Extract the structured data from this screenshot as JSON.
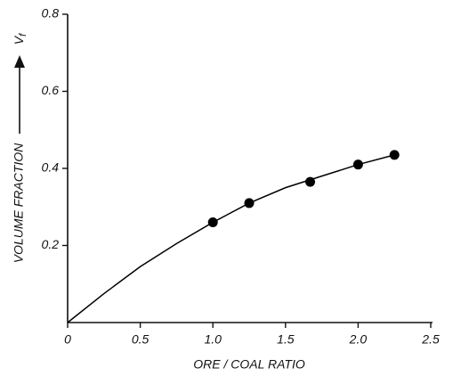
{
  "chart_data": {
    "type": "scatter",
    "xlabel": "ORE / COAL RATIO",
    "ylabel": "VOLUME FRACTION",
    "ysymbol": "V",
    "ysymbol_sub": "f",
    "x": [
      1.0,
      1.25,
      1.67,
      2.0,
      2.25
    ],
    "values": [
      0.26,
      0.31,
      0.365,
      0.41,
      0.435
    ],
    "color": "#000000",
    "curve": {
      "x": [
        0,
        0.25,
        0.5,
        0.75,
        1.0,
        1.25,
        1.5,
        1.75,
        2.0,
        2.25
      ],
      "values": [
        0,
        0.075,
        0.145,
        0.205,
        0.26,
        0.31,
        0.35,
        0.38,
        0.41,
        0.435
      ]
    },
    "xlim": [
      0,
      2.5
    ],
    "xticks": [
      0,
      0.5,
      {
        "value": 1,
        "label": "1.0"
      },
      1.5,
      {
        "value": 2,
        "label": "2.0"
      },
      2.5
    ],
    "ylim": [
      0,
      0.8
    ],
    "yticks": [
      0.2,
      0.4,
      0.6,
      0.8
    ],
    "grid": false
  }
}
